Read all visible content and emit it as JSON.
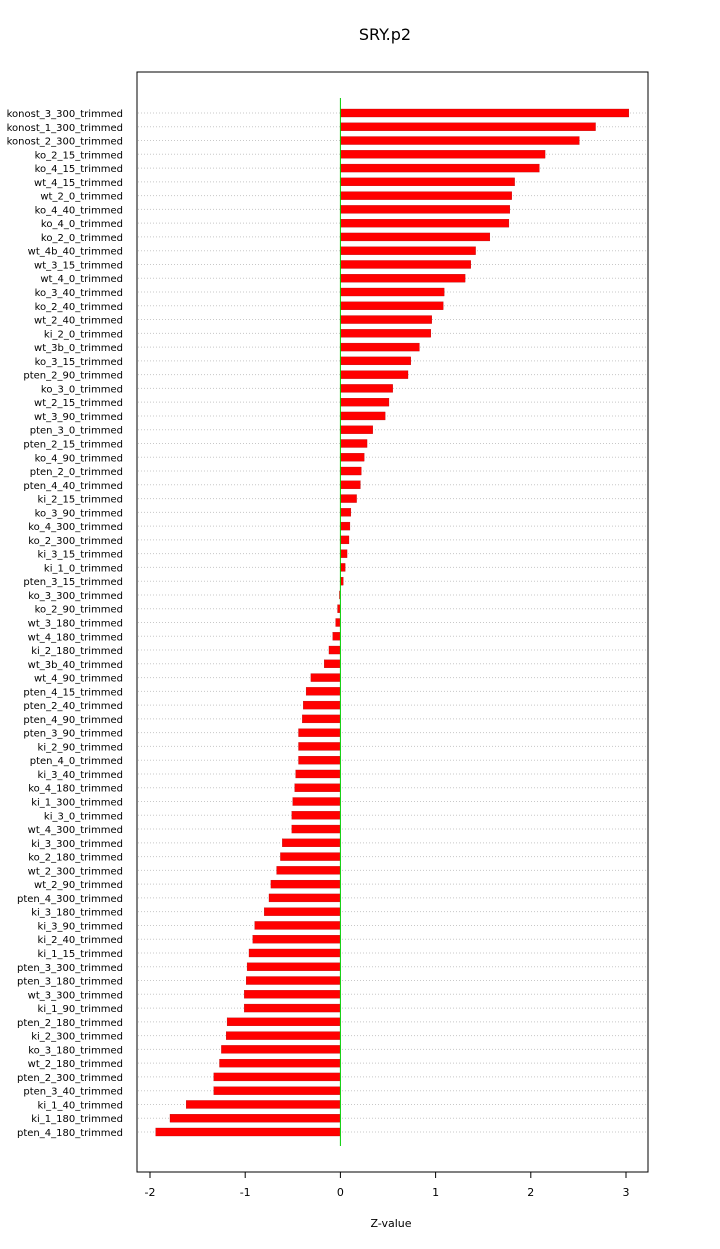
{
  "chart_data": {
    "type": "bar",
    "orientation": "horizontal",
    "title": "SRY.p2",
    "xlabel": "Z-value",
    "ylabel": "",
    "xlim": [
      -2.0,
      3.0
    ],
    "x_ticks": [
      -2,
      -1,
      0,
      1,
      2,
      3
    ],
    "x_tick_labels": [
      "-2",
      "-1",
      "0",
      "1",
      "2",
      "3"
    ],
    "grid": "horizontal dotted",
    "legend": "none",
    "bar_color": "#ff0000",
    "zero_line_color": "#00cc00",
    "categories": [
      "konost_3_300_trimmed",
      "konost_1_300_trimmed",
      "konost_2_300_trimmed",
      "ko_2_15_trimmed",
      "ko_4_15_trimmed",
      "wt_4_15_trimmed",
      "wt_2_0_trimmed",
      "ko_4_40_trimmed",
      "ko_4_0_trimmed",
      "ko_2_0_trimmed",
      "wt_4b_40_trimmed",
      "wt_3_15_trimmed",
      "wt_4_0_trimmed",
      "ko_3_40_trimmed",
      "ko_2_40_trimmed",
      "wt_2_40_trimmed",
      "ki_2_0_trimmed",
      "wt_3b_0_trimmed",
      "ko_3_15_trimmed",
      "pten_2_90_trimmed",
      "ko_3_0_trimmed",
      "wt_2_15_trimmed",
      "wt_3_90_trimmed",
      "pten_3_0_trimmed",
      "pten_2_15_trimmed",
      "ko_4_90_trimmed",
      "pten_2_0_trimmed",
      "pten_4_40_trimmed",
      "ki_2_15_trimmed",
      "ko_3_90_trimmed",
      "ko_4_300_trimmed",
      "ko_2_300_trimmed",
      "ki_3_15_trimmed",
      "ki_1_0_trimmed",
      "pten_3_15_trimmed",
      "ko_3_300_trimmed",
      "ko_2_90_trimmed",
      "wt_3_180_trimmed",
      "wt_4_180_trimmed",
      "ki_2_180_trimmed",
      "wt_3b_40_trimmed",
      "wt_4_90_trimmed",
      "pten_4_15_trimmed",
      "pten_2_40_trimmed",
      "pten_4_90_trimmed",
      "pten_3_90_trimmed",
      "ki_2_90_trimmed",
      "pten_4_0_trimmed",
      "ki_3_40_trimmed",
      "ko_4_180_trimmed",
      "ki_1_300_trimmed",
      "ki_3_0_trimmed",
      "wt_4_300_trimmed",
      "ki_3_300_trimmed",
      "ko_2_180_trimmed",
      "wt_2_300_trimmed",
      "wt_2_90_trimmed",
      "pten_4_300_trimmed",
      "ki_3_180_trimmed",
      "ki_3_90_trimmed",
      "ki_2_40_trimmed",
      "ki_1_15_trimmed",
      "pten_3_300_trimmed",
      "pten_3_180_trimmed",
      "wt_3_300_trimmed",
      "ki_1_90_trimmed",
      "pten_2_180_trimmed",
      "ki_2_300_trimmed",
      "ko_3_180_trimmed",
      "wt_2_180_trimmed",
      "pten_2_300_trimmed",
      "pten_3_40_trimmed",
      "ki_1_40_trimmed",
      "ki_1_180_trimmed",
      "pten_4_180_trimmed"
    ],
    "values": [
      3.03,
      2.68,
      2.51,
      2.15,
      2.09,
      1.83,
      1.8,
      1.78,
      1.77,
      1.57,
      1.42,
      1.37,
      1.31,
      1.09,
      1.08,
      0.96,
      0.95,
      0.83,
      0.74,
      0.71,
      0.55,
      0.51,
      0.47,
      0.34,
      0.28,
      0.25,
      0.22,
      0.21,
      0.17,
      0.11,
      0.1,
      0.09,
      0.07,
      0.05,
      0.03,
      -0.01,
      -0.03,
      -0.05,
      -0.08,
      -0.12,
      -0.17,
      -0.31,
      -0.36,
      -0.39,
      -0.4,
      -0.44,
      -0.44,
      -0.44,
      -0.47,
      -0.48,
      -0.5,
      -0.51,
      -0.51,
      -0.61,
      -0.63,
      -0.67,
      -0.73,
      -0.75,
      -0.8,
      -0.9,
      -0.92,
      -0.96,
      -0.98,
      -0.99,
      -1.01,
      -1.01,
      -1.19,
      -1.2,
      -1.25,
      -1.27,
      -1.33,
      -1.33,
      -1.62,
      -1.79,
      -1.94
    ]
  }
}
